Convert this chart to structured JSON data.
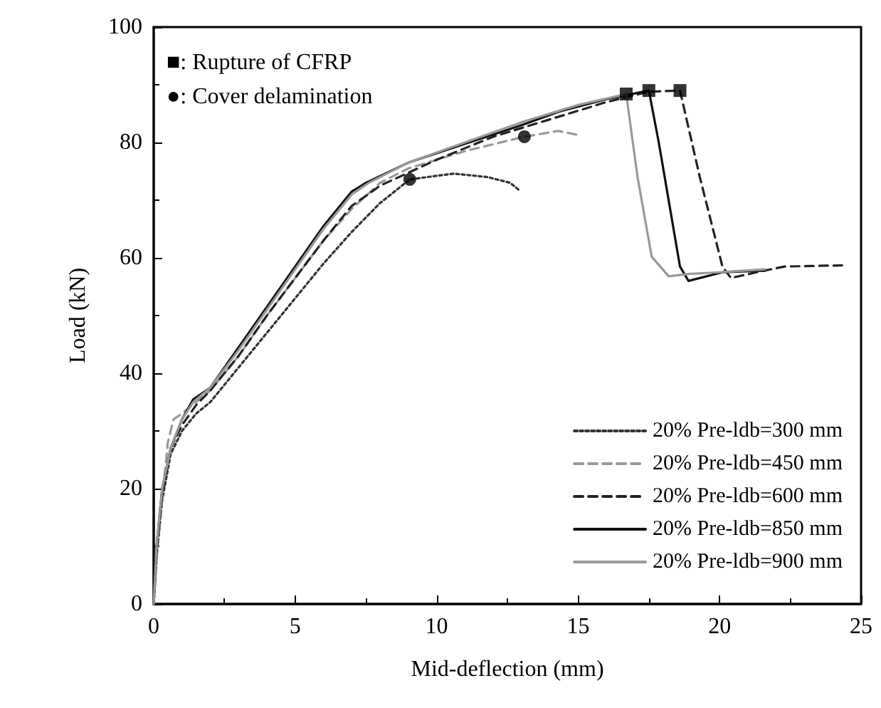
{
  "chart_data": {
    "type": "line",
    "xlabel": "Mid-deflection (mm)",
    "ylabel": "Load (kN)",
    "xlim": [
      0,
      25
    ],
    "xticks": [
      0,
      5,
      10,
      15,
      20,
      25
    ],
    "ylim": [
      0,
      100
    ],
    "yticks": [
      0,
      20,
      40,
      60,
      80,
      100
    ],
    "grid": false,
    "legend": "bottom right",
    "marker": "none",
    "annotations": [
      "■: Rupture of CFRP",
      "●: Cover delamination"
    ],
    "series": [
      {
        "name": "20% Pre-ldb=300 mm",
        "color": "#333333",
        "line_style": "dotted",
        "x": [
          0,
          0.1,
          0.3,
          0.6,
          1,
          1.5,
          2,
          3,
          4,
          5,
          6,
          7,
          8,
          9.05,
          10.6,
          11.8,
          12.6,
          12.9
        ],
        "values": [
          0,
          8,
          18,
          26,
          30,
          33,
          35,
          41,
          47,
          53,
          59,
          64.5,
          69.5,
          73.6,
          74.6,
          74,
          73,
          71.8
        ]
      },
      {
        "name": "20% Pre-ldb=450 mm",
        "color": "#999999",
        "line_style": "dashed",
        "x": [
          0,
          0.1,
          0.3,
          0.5,
          0.7,
          1,
          1.5,
          2,
          3,
          4,
          5,
          6,
          7,
          8,
          9,
          11,
          13.1,
          14.3,
          15.1
        ],
        "values": [
          0,
          8,
          18,
          28,
          32,
          33,
          35,
          37,
          43,
          50,
          56.5,
          63,
          68.5,
          73,
          75.5,
          78.5,
          81,
          82,
          81.2
        ]
      },
      {
        "name": "20% Pre-ldb=600 mm",
        "color": "#222222",
        "line_style": "dashed",
        "x": [
          0,
          0.1,
          0.3,
          0.6,
          1,
          1.5,
          2,
          3,
          4,
          5,
          6,
          7,
          8,
          10,
          12,
          14,
          16,
          17.5,
          18.6,
          19.3,
          20.1,
          20.4,
          21.3,
          22.3,
          24.4
        ],
        "values": [
          0,
          9,
          19,
          27,
          31,
          34.5,
          37,
          43,
          50,
          56.5,
          63,
          69,
          72.5,
          77,
          81,
          84,
          87,
          88.8,
          89,
          74,
          58.5,
          56.5,
          57.5,
          58.5,
          58.7
        ]
      },
      {
        "name": "20% Pre-ldb=850 mm",
        "color": "#111111",
        "line_style": "solid",
        "x": [
          0,
          0.1,
          0.3,
          0.6,
          1,
          1.4,
          2,
          3,
          4,
          5,
          6,
          7,
          7.5,
          9,
          10.9,
          13,
          14.3,
          16,
          17.5,
          17.85,
          18.6,
          18.9,
          20.1,
          21.6
        ],
        "values": [
          0,
          10,
          20,
          27,
          32,
          35.5,
          37.5,
          44.5,
          51.5,
          58.5,
          65.5,
          71.5,
          73,
          76.5,
          79.6,
          83,
          85.3,
          87.5,
          89,
          80,
          58.5,
          56,
          57.5,
          57.8
        ]
      },
      {
        "name": "20% Pre-ldb=900 mm",
        "color": "#999999",
        "line_style": "solid",
        "x": [
          0,
          0.1,
          0.3,
          0.6,
          1,
          1.4,
          2,
          3,
          4,
          5,
          6,
          7,
          7.6,
          9,
          11,
          13,
          15,
          16.7,
          17.1,
          17.6,
          18.2,
          18.9,
          20,
          21.6
        ],
        "values": [
          0,
          10,
          20,
          27,
          32,
          35,
          37.5,
          44,
          51,
          58,
          65,
          71,
          73,
          76.5,
          80,
          83.5,
          86.5,
          88.4,
          74,
          60.2,
          56.8,
          57.2,
          57.5,
          58
        ]
      },
      {
        "type": "scatter",
        "marker": "square",
        "color": "#000000",
        "x": [
          16.7,
          17.5,
          18.6
        ],
        "values": [
          88.4,
          89,
          89
        ]
      },
      {
        "type": "scatter",
        "marker": "circle",
        "color": "#000000",
        "x": [
          9.05,
          13.1
        ],
        "values": [
          73.6,
          81
        ]
      }
    ]
  }
}
